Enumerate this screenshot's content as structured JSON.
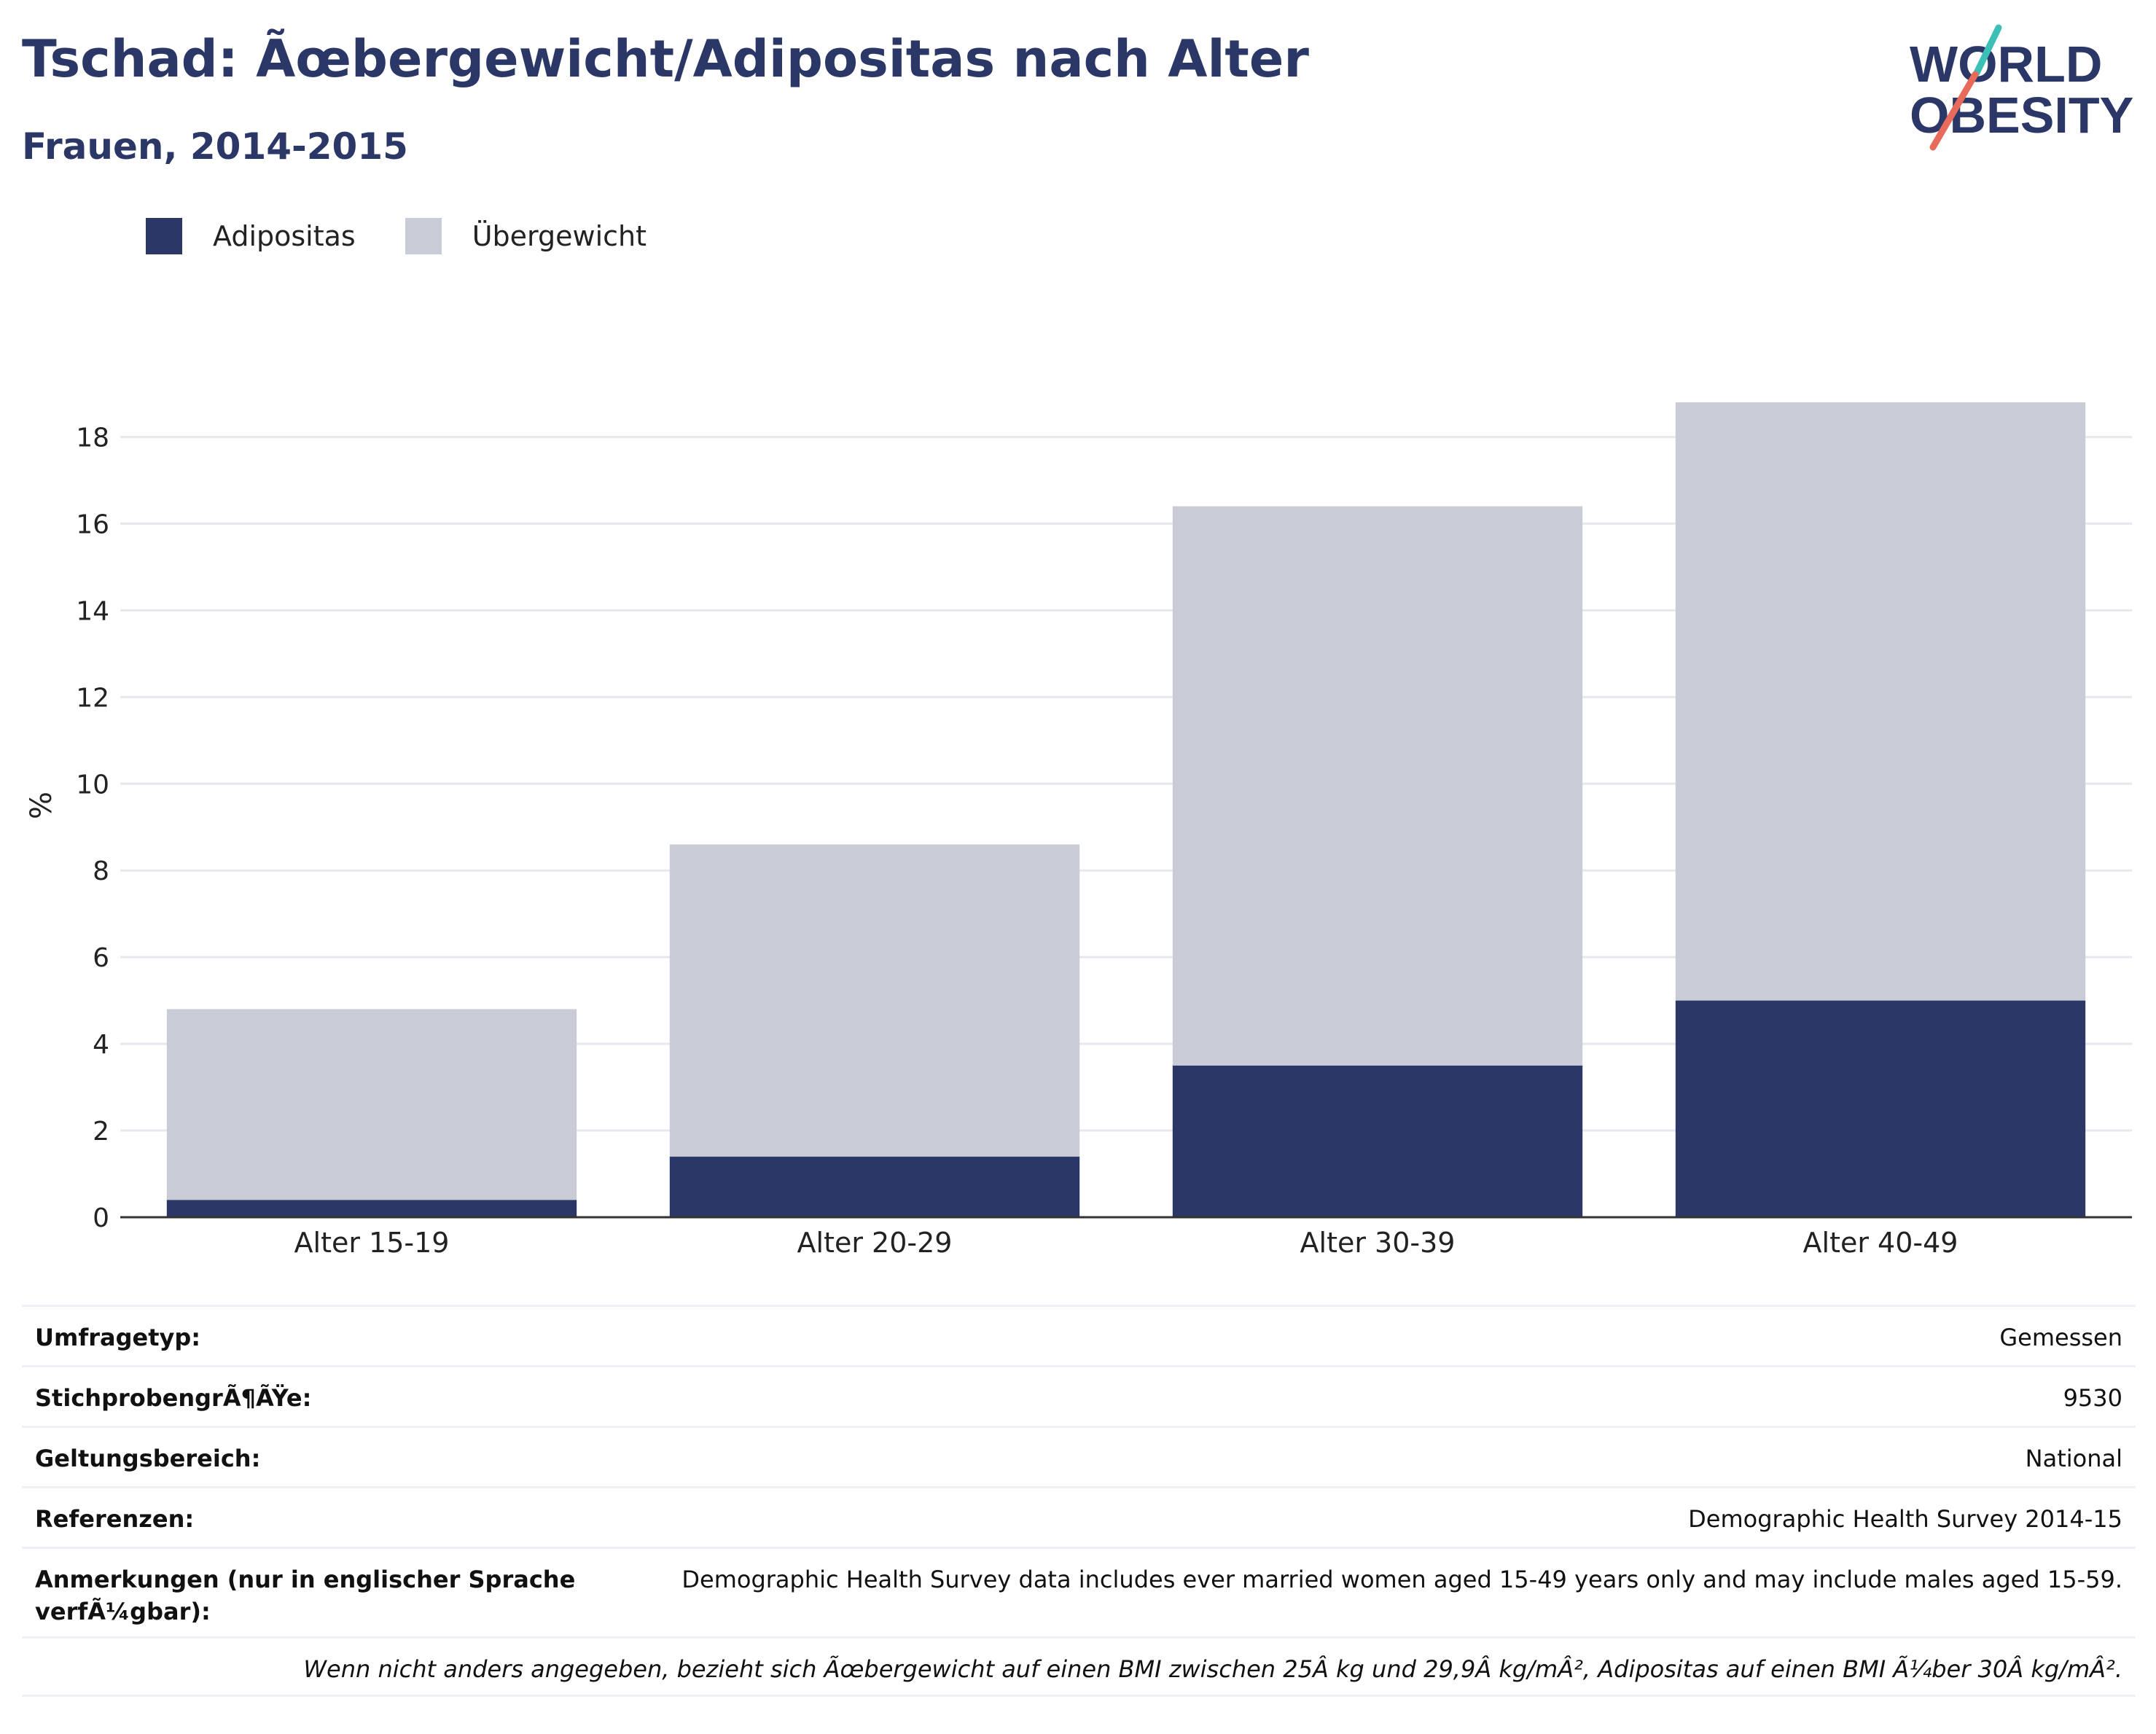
{
  "header": {
    "title": "Tschad: Ãœbergewicht/Adipositas nach Alter",
    "subtitle": "Frauen, 2014-2015",
    "logo_text": "WORLD OBESITY"
  },
  "colors": {
    "brand_navy": "#2b3766",
    "adipositas": "#2b3766",
    "uebergewicht": "#c9ccd7",
    "logo_teal": "#3bbfb7",
    "logo_coral": "#e86a5b",
    "grid": "#e6e8ee"
  },
  "legend": {
    "items": [
      {
        "label": "Adipositas",
        "color": "#2b3766"
      },
      {
        "label": "Übergewicht",
        "color": "#c9ccd7"
      }
    ]
  },
  "chart_data": {
    "type": "bar",
    "stacked": true,
    "categories": [
      "Alter 15-19",
      "Alter 20-29",
      "Alter 30-39",
      "Alter 40-49"
    ],
    "series": [
      {
        "name": "Adipositas",
        "values": [
          0.4,
          1.4,
          3.5,
          5.0
        ],
        "color": "#2b3766"
      },
      {
        "name": "Übergewicht",
        "values": [
          4.4,
          7.2,
          12.9,
          13.8
        ],
        "color": "#c9ccd7"
      }
    ],
    "ylabel": "%",
    "xlabel": "",
    "ylim": [
      0,
      19
    ],
    "yticks": [
      0,
      2,
      4,
      6,
      8,
      10,
      12,
      14,
      16,
      18
    ],
    "grid": true,
    "legend_position": "top-left"
  },
  "info": {
    "survey_type_label": "Umfragetyp:",
    "survey_type_value": "Gemessen",
    "sample_size_label": "StichprobengrÃ¶ÃŸe:",
    "sample_size_value": "9530",
    "scope_label": "Geltungsbereich:",
    "scope_value": "National",
    "references_label": "Referenzen:",
    "references_value": "Demographic Health Survey 2014-15",
    "notes_label": "Anmerkungen (nur in englischer Sprache verfÃ¼gbar):",
    "notes_value": "Demographic Health Survey data includes ever married women aged 15-49 years only and may include males aged 15-59.",
    "footnote": "Wenn nicht anders angegeben, bezieht sich Ãœbergewicht auf einen BMI zwischen 25Â kg und 29,9Â kg/mÂ², Adipositas auf einen BMI Ã¼ber 30Â kg/mÂ²."
  }
}
